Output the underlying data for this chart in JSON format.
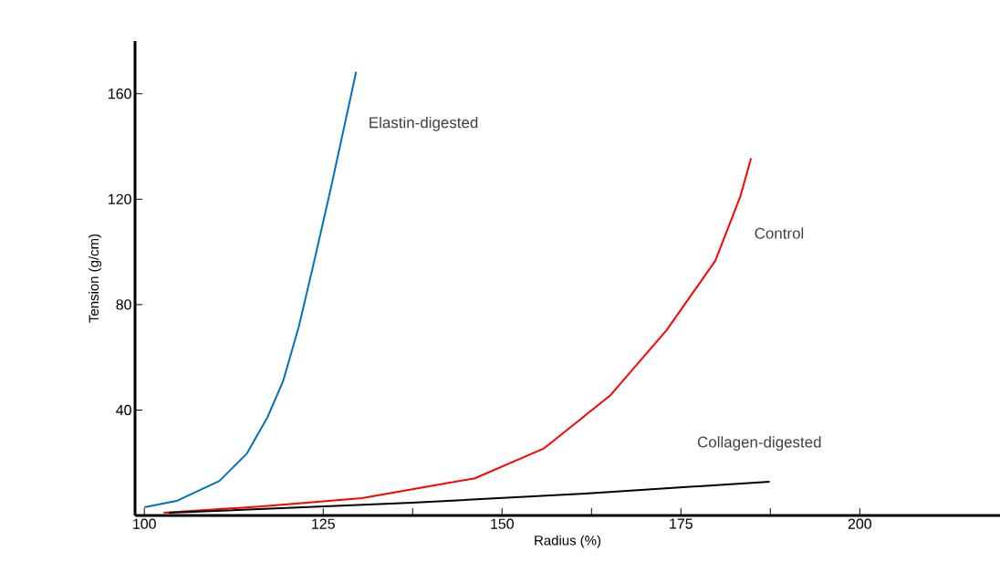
{
  "chart_data": {
    "type": "line",
    "xlabel": "Radius (%)",
    "ylabel": "Tension (g/cm)",
    "xlim": [
      98.7,
      219.6
    ],
    "ylim": [
      0,
      180
    ],
    "xticks": [
      100,
      125,
      150,
      175,
      200,
      {
        "value": 137.5,
        "label": null
      },
      {
        "value": 162.5,
        "label": null
      },
      {
        "value": 187.5,
        "label": null
      }
    ],
    "yticks": [
      40,
      80,
      120,
      160
    ],
    "grid": false,
    "marker": "none",
    "line_style": "solid",
    "series": [
      {
        "name": "Elastin-digested",
        "color": "#0070c0",
        "x": [
          100.0,
          104.5,
          110.5,
          114.3,
          117.2,
          119.4,
          121.6,
          123.6,
          126.1,
          129.6
        ],
        "values": [
          3.1,
          5.5,
          13.1,
          23.4,
          37.2,
          51,
          71.7,
          94.8,
          124.5,
          168.3
        ]
      },
      {
        "name": "Control",
        "color": "#ff0000",
        "x": [
          102.7,
          116.1,
          130.4,
          146.2,
          155.9,
          165.1,
          173.0,
          179.8,
          183.3,
          184.8
        ],
        "values": [
          1.0,
          3.4,
          6.6,
          14.1,
          25.5,
          45.5,
          70.3,
          96.6,
          121,
          135.5
        ]
      },
      {
        "name": "Collagen-digested",
        "color": "#000000",
        "x": [
          103.4,
          137.4,
          161.6,
          187.4
        ],
        "values": [
          1,
          4.8,
          8.3,
          12.8
        ]
      }
    ]
  }
}
